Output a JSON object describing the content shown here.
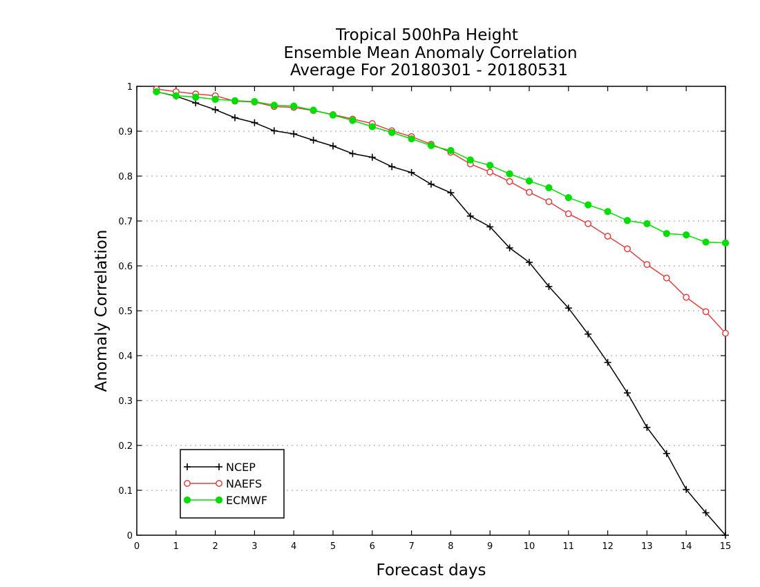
{
  "chart_data": {
    "type": "line",
    "title": [
      "Tropical 500hPa Height",
      "Ensemble Mean Anomaly Correlation",
      "Average For 20180301 - 20180531"
    ],
    "xlabel": "Forecast days",
    "ylabel": "Anomaly Correlation",
    "xlim": [
      0,
      15
    ],
    "ylim": [
      0,
      1
    ],
    "xticks": [
      "0",
      "1",
      "2",
      "3",
      "4",
      "5",
      "6",
      "7",
      "8",
      "9",
      "10",
      "11",
      "12",
      "13",
      "14",
      "15"
    ],
    "yticks": [
      "0",
      "0.1",
      "0.2",
      "0.3",
      "0.4",
      "0.5",
      "0.6",
      "0.7",
      "0.8",
      "0.9",
      "1"
    ],
    "grid": "horizontal-dotted",
    "legend_position": "bottom-left",
    "x": [
      0.5,
      1,
      1.5,
      2,
      2.5,
      3,
      3.5,
      4,
      4.5,
      5,
      5.5,
      6,
      6.5,
      7,
      7.5,
      8,
      8.5,
      9,
      9.5,
      10,
      10.5,
      11,
      11.5,
      12,
      12.5,
      13,
      13.5,
      14,
      14.5,
      15
    ],
    "series": [
      {
        "name": "NCEP",
        "color": "#000000",
        "marker": "plus",
        "values": [
          0.988,
          0.978,
          0.963,
          0.948,
          0.93,
          0.919,
          0.901,
          0.894,
          0.88,
          0.867,
          0.85,
          0.842,
          0.821,
          0.808,
          0.782,
          0.763,
          0.711,
          0.687,
          0.64,
          0.608,
          0.554,
          0.506,
          0.448,
          0.385,
          0.317,
          0.24,
          0.182,
          0.102,
          0.05,
          0.0
        ]
      },
      {
        "name": "NAEFS",
        "color": "#e04040",
        "marker": "open-circle",
        "values": [
          0.994,
          0.988,
          0.983,
          0.979,
          0.967,
          0.965,
          0.955,
          0.953,
          0.946,
          0.937,
          0.927,
          0.917,
          0.901,
          0.888,
          0.871,
          0.853,
          0.827,
          0.809,
          0.788,
          0.764,
          0.743,
          0.716,
          0.694,
          0.666,
          0.638,
          0.603,
          0.573,
          0.53,
          0.498,
          0.45
        ]
      },
      {
        "name": "ECMWF",
        "color": "#00dd00",
        "marker": "filled-circle",
        "values": [
          0.988,
          0.979,
          0.976,
          0.971,
          0.968,
          0.966,
          0.958,
          0.956,
          0.947,
          0.936,
          0.924,
          0.91,
          0.897,
          0.883,
          0.868,
          0.857,
          0.836,
          0.824,
          0.805,
          0.789,
          0.774,
          0.752,
          0.736,
          0.721,
          0.701,
          0.694,
          0.672,
          0.669,
          0.653,
          0.651
        ]
      }
    ]
  }
}
